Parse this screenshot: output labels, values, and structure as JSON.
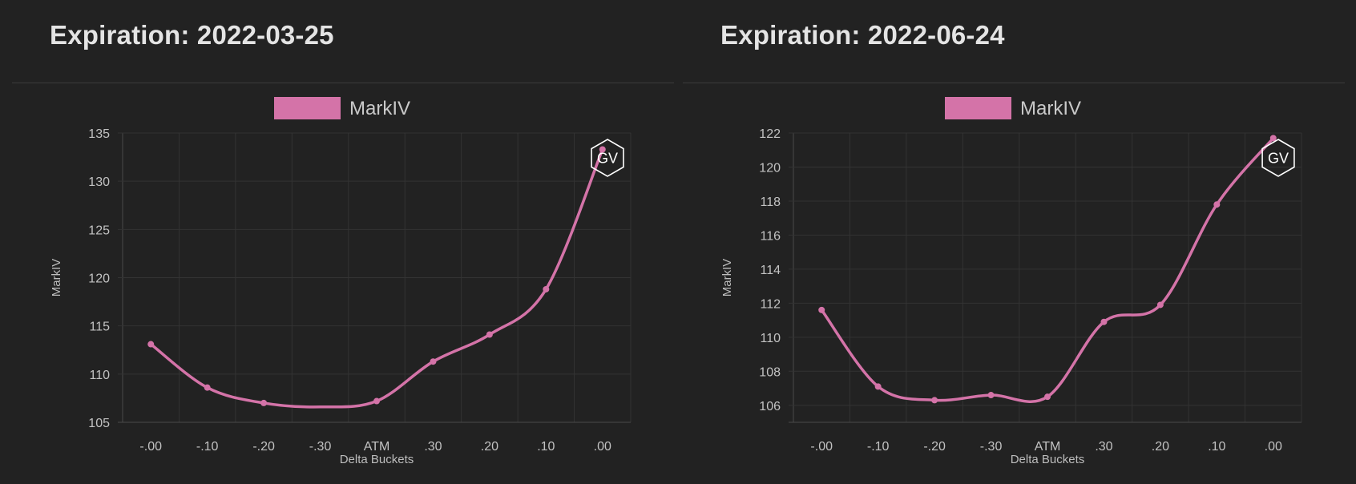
{
  "colors": {
    "background": "#222222",
    "series": "#d473a8",
    "grid": "#333333",
    "axis": "#4a4a4a",
    "watermark": "#ffffff"
  },
  "chart_data": [
    {
      "type": "line",
      "title": "Expiration: 2022-03-25",
      "xlabel": "Delta Buckets",
      "ylabel": "MarkIV",
      "categories": [
        "-.00",
        "-.10",
        "-.20",
        "-.30",
        "ATM",
        ".30",
        ".20",
        ".10",
        ".00"
      ],
      "series": [
        {
          "name": "MarkIV",
          "values": [
            113.1,
            108.6,
            107.0,
            null,
            107.2,
            111.3,
            114.1,
            118.8,
            133.3
          ]
        }
      ],
      "ylim": [
        105,
        135
      ],
      "yticks": [
        105,
        110,
        115,
        120,
        125,
        130,
        135
      ],
      "grid": true,
      "smooth": true,
      "legend": "top-center",
      "watermark": "GV"
    },
    {
      "type": "line",
      "title": "Expiration: 2022-06-24",
      "xlabel": "Delta Buckets",
      "ylabel": "MarkIV",
      "categories": [
        "-.00",
        "-.10",
        "-.20",
        "-.30",
        "ATM",
        ".30",
        ".20",
        ".10",
        ".00"
      ],
      "series": [
        {
          "name": "MarkIV",
          "values": [
            111.6,
            107.1,
            106.3,
            106.6,
            106.5,
            110.9,
            111.9,
            117.8,
            121.7
          ]
        }
      ],
      "ylim": [
        105,
        122
      ],
      "yticks": [
        106,
        108,
        110,
        112,
        114,
        116,
        118,
        120,
        122
      ],
      "grid": true,
      "smooth": true,
      "legend": "top-center",
      "watermark": "GV"
    }
  ]
}
